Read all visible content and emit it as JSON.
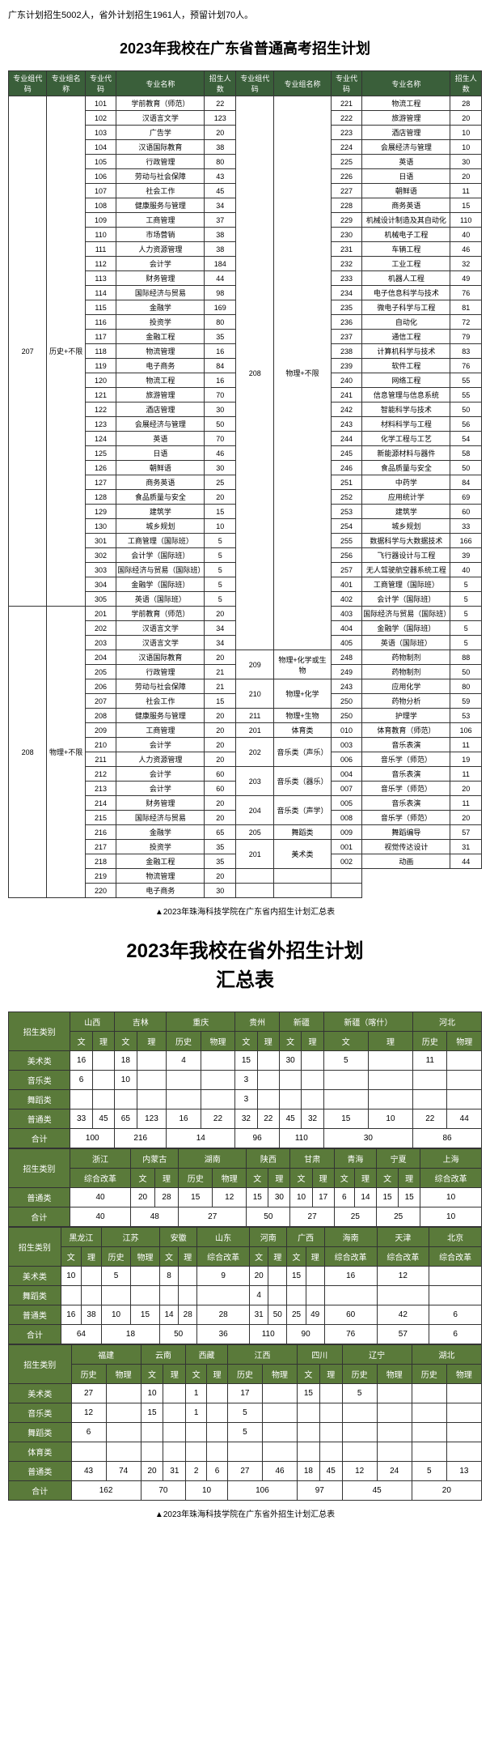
{
  "intro": "广东计划招生5002人，省外计划招生1961人，预留计划70人。",
  "title1": "2023年我校在广东省普通高考招生计划",
  "caption1": "▲2023年珠海科技学院在广东省内招生计划汇总表",
  "title2a": "2023年我校在省外招生计划",
  "title2b": "汇总表",
  "caption2": "▲2023年珠海科技学院在广东省外招生计划汇总表",
  "h1": [
    "专业组代码",
    "专业组名称",
    "专业代码",
    "专业名称",
    "招生人数",
    "专业组代码",
    "专业组名称",
    "专业代码",
    "专业名称",
    "招生人数"
  ],
  "g1": {
    "code": "207",
    "name": "历史+不限"
  },
  "g2": {
    "code": "208",
    "name": "物理+不限"
  },
  "g3": {
    "code": "208",
    "name": "物理+不限"
  },
  "g4": {
    "code": "209",
    "name": "物理+化学或生物"
  },
  "g5": {
    "code": "210",
    "name": "物理+化学"
  },
  "g6": {
    "code": "211",
    "name": "物理+生物"
  },
  "g7": {
    "code": "201",
    "name": "体育类"
  },
  "g8": {
    "code": "202",
    "name": "音乐类（声乐）"
  },
  "g9": {
    "code": "203",
    "name": "音乐类（器乐）"
  },
  "g10": {
    "code": "204",
    "name": "音乐类（声学）"
  },
  "g11": {
    "code": "205",
    "name": "舞蹈类"
  },
  "g12": {
    "code": "201",
    "name": "美术类"
  },
  "left": [
    [
      "101",
      "学前教育（师范）",
      "22"
    ],
    [
      "102",
      "汉语言文学",
      "123"
    ],
    [
      "103",
      "广告学",
      "20"
    ],
    [
      "104",
      "汉语国际教育",
      "38"
    ],
    [
      "105",
      "行政管理",
      "80"
    ],
    [
      "106",
      "劳动与社会保障",
      "43"
    ],
    [
      "107",
      "社会工作",
      "45"
    ],
    [
      "108",
      "健康服务与管理",
      "34"
    ],
    [
      "109",
      "工商管理",
      "37"
    ],
    [
      "110",
      "市场营销",
      "38"
    ],
    [
      "111",
      "人力资源管理",
      "38"
    ],
    [
      "112",
      "会计学",
      "184"
    ],
    [
      "113",
      "财务管理",
      "44"
    ],
    [
      "114",
      "国际经济与贸易",
      "98"
    ],
    [
      "115",
      "金融学",
      "169"
    ],
    [
      "116",
      "投资学",
      "80"
    ],
    [
      "117",
      "金融工程",
      "35"
    ],
    [
      "118",
      "物流管理",
      "16"
    ],
    [
      "119",
      "电子商务",
      "84"
    ],
    [
      "120",
      "物流工程",
      "16"
    ],
    [
      "121",
      "旅游管理",
      "70"
    ],
    [
      "122",
      "酒店管理",
      "30"
    ],
    [
      "123",
      "会展经济与管理",
      "50"
    ],
    [
      "124",
      "英语",
      "70"
    ],
    [
      "125",
      "日语",
      "46"
    ],
    [
      "126",
      "朝鲜语",
      "30"
    ],
    [
      "127",
      "商务英语",
      "25"
    ],
    [
      "128",
      "食品质量与安全",
      "20"
    ],
    [
      "129",
      "建筑学",
      "15"
    ],
    [
      "130",
      "城乡规划",
      "10"
    ],
    [
      "301",
      "工商管理（国际班）",
      "5"
    ],
    [
      "302",
      "会计学（国际班）",
      "5"
    ],
    [
      "303",
      "国际经济与贸易（国际班）",
      "5"
    ],
    [
      "304",
      "金融学（国际班）",
      "5"
    ],
    [
      "305",
      "英语（国际班）",
      "5"
    ],
    [
      "201",
      "学前教育（师范）",
      "20"
    ],
    [
      "202",
      "汉语言文学",
      "34"
    ],
    [
      "203",
      "汉语言文学",
      "34"
    ],
    [
      "204",
      "汉语国际教育",
      "20"
    ],
    [
      "205",
      "行政管理",
      "21"
    ],
    [
      "206",
      "劳动与社会保障",
      "21"
    ],
    [
      "207",
      "社会工作",
      "15"
    ],
    [
      "208",
      "健康服务与管理",
      "20"
    ],
    [
      "209",
      "工商管理",
      "20"
    ],
    [
      "210",
      "会计学",
      "20"
    ],
    [
      "211",
      "人力资源管理",
      "20"
    ],
    [
      "212",
      "会计学",
      "60"
    ],
    [
      "213",
      "会计学",
      "60"
    ],
    [
      "214",
      "财务管理",
      "20"
    ],
    [
      "215",
      "国际经济与贸易",
      "20"
    ],
    [
      "216",
      "金融学",
      "65"
    ],
    [
      "217",
      "投资学",
      "35"
    ],
    [
      "218",
      "金融工程",
      "35"
    ],
    [
      "219",
      "物流管理",
      "20"
    ],
    [
      "220",
      "电子商务",
      "30"
    ]
  ],
  "right": [
    [
      "221",
      "物流工程",
      "28"
    ],
    [
      "222",
      "旅游管理",
      "20"
    ],
    [
      "223",
      "酒店管理",
      "10"
    ],
    [
      "224",
      "会展经济与管理",
      "10"
    ],
    [
      "225",
      "英语",
      "30"
    ],
    [
      "226",
      "日语",
      "20"
    ],
    [
      "227",
      "朝鲜语",
      "11"
    ],
    [
      "228",
      "商务英语",
      "15"
    ],
    [
      "229",
      "机械设计制造及其自动化",
      "110"
    ],
    [
      "230",
      "机械电子工程",
      "40"
    ],
    [
      "231",
      "车辆工程",
      "46"
    ],
    [
      "232",
      "工业工程",
      "32"
    ],
    [
      "233",
      "机器人工程",
      "49"
    ],
    [
      "234",
      "电子信息科学与技术",
      "76"
    ],
    [
      "235",
      "微电子科学与工程",
      "81"
    ],
    [
      "236",
      "自动化",
      "72"
    ],
    [
      "237",
      "通信工程",
      "79"
    ],
    [
      "238",
      "计算机科学与技术",
      "83"
    ],
    [
      "239",
      "软件工程",
      "76"
    ],
    [
      "240",
      "网络工程",
      "55"
    ],
    [
      "241",
      "信息管理与信息系统",
      "55"
    ],
    [
      "242",
      "智能科学与技术",
      "50"
    ],
    [
      "243",
      "材料科学与工程",
      "56"
    ],
    [
      "244",
      "化学工程与工艺",
      "54"
    ],
    [
      "245",
      "新能源材料与器件",
      "58"
    ],
    [
      "246",
      "食品质量与安全",
      "50"
    ],
    [
      "251",
      "中药学",
      "84"
    ],
    [
      "252",
      "应用统计学",
      "69"
    ],
    [
      "253",
      "建筑学",
      "60"
    ],
    [
      "254",
      "城乡规划",
      "33"
    ],
    [
      "255",
      "数据科学与大数据技术",
      "166"
    ],
    [
      "256",
      "飞行器设计与工程",
      "39"
    ],
    [
      "257",
      "无人驾驶航空器系统工程",
      "40"
    ],
    [
      "401",
      "工商管理（国际班）",
      "5"
    ],
    [
      "402",
      "会计学（国际班）",
      "5"
    ],
    [
      "403",
      "国际经济与贸易（国际班）",
      "5"
    ],
    [
      "404",
      "金融学（国际班）",
      "5"
    ],
    [
      "405",
      "英语（国际班）",
      "5"
    ],
    [
      "248",
      "药物制剂",
      "88"
    ],
    [
      "249",
      "药物制剂",
      "50"
    ],
    [
      "243",
      "应用化学",
      "80"
    ],
    [
      "250",
      "药物分析",
      "59"
    ],
    [
      "250",
      "护理学",
      "53"
    ],
    [
      "010",
      "体育教育（师范）",
      "106"
    ],
    [
      "003",
      "音乐表演",
      "11"
    ],
    [
      "006",
      "音乐学（师范）",
      "19"
    ],
    [
      "004",
      "音乐表演",
      "11"
    ],
    [
      "007",
      "音乐学（师范）",
      "20"
    ],
    [
      "005",
      "音乐表演",
      "11"
    ],
    [
      "008",
      "音乐学（师范）",
      "20"
    ],
    [
      "009",
      "舞蹈编导",
      "57"
    ],
    [
      "001",
      "视觉传达设计",
      "31"
    ],
    [
      "002",
      "动画",
      "44"
    ]
  ],
  "t2": {
    "cats": [
      "美术类",
      "音乐类",
      "舞蹈类",
      "普通类",
      "合计"
    ],
    "cats2": [
      "普通类",
      "合计"
    ],
    "cats3": [
      "美术类",
      "舞蹈类",
      "普通类",
      "合计"
    ],
    "cats4": [
      "美术类",
      "音乐类",
      "舞蹈类",
      "体育类",
      "普通类",
      "合计"
    ],
    "b1": {
      "prov": [
        "山西",
        "吉林",
        "重庆",
        "贵州",
        "新疆",
        "新疆（喀什）",
        "河北"
      ],
      "sub": [
        "文",
        "理",
        "文",
        "理",
        "历史",
        "物理",
        "文",
        "理",
        "文",
        "理",
        "文",
        "理",
        "历史",
        "物理"
      ],
      "r": [
        [
          "16",
          "",
          "18",
          "",
          "4",
          "",
          "15",
          "",
          "30",
          "",
          "5",
          "",
          "11",
          ""
        ],
        [
          "6",
          "",
          "10",
          "",
          "",
          "",
          "3",
          "",
          "",
          "",
          "",
          "",
          "",
          ""
        ],
        [
          "",
          "",
          "",
          "",
          "",
          "",
          "3",
          "",
          "",
          "",
          "",
          "",
          "",
          ""
        ],
        [
          "33",
          "45",
          "65",
          "123",
          "16",
          "22",
          "32",
          "22",
          "45",
          "32",
          "15",
          "10",
          "22",
          "44"
        ],
        [
          "100",
          "",
          "216",
          "",
          "14",
          "",
          "96",
          "",
          "110",
          "",
          "30",
          "",
          "86",
          ""
        ]
      ]
    },
    "b2": {
      "prov": [
        "浙江",
        "内蒙古",
        "湖南",
        "陕西",
        "甘肃",
        "青海",
        "宁夏",
        "上海"
      ],
      "sub": [
        "综合改革",
        "文",
        "理",
        "历史",
        "物理",
        "文",
        "理",
        "文",
        "理",
        "文",
        "理",
        "文",
        "理",
        "综合改革"
      ],
      "r": [
        [
          "40",
          "20",
          "28",
          "15",
          "12",
          "15",
          "30",
          "10",
          "17",
          "6",
          "14",
          "15",
          "15",
          "10"
        ],
        [
          "40",
          "48",
          "",
          "27",
          "",
          "50",
          "",
          "27",
          "",
          "25",
          "",
          "25",
          "",
          "10"
        ]
      ]
    },
    "b3": {
      "prov": [
        "黑龙江",
        "江苏",
        "安徽",
        "山东",
        "河南",
        "广西",
        "海南",
        "天津",
        "北京"
      ],
      "sub": [
        "文",
        "理",
        "历史",
        "物理",
        "文",
        "理",
        "综合改革",
        "文",
        "理",
        "文",
        "理",
        "综合改革",
        "综合改革",
        "综合改革"
      ],
      "r": [
        [
          "10",
          "",
          "5",
          "",
          "8",
          "",
          "9",
          "20",
          "",
          "15",
          "",
          "16",
          "12",
          ""
        ],
        [
          "",
          "",
          "",
          "",
          "",
          "",
          "",
          "4",
          "",
          "",
          "",
          "",
          "",
          ""
        ],
        [
          "16",
          "38",
          "10",
          "15",
          "14",
          "28",
          "28",
          "31",
          "50",
          "25",
          "49",
          "60",
          "42",
          "6"
        ],
        [
          "64",
          "",
          "18",
          "",
          "50",
          "",
          "36",
          "110",
          "",
          "90",
          "",
          "76",
          "57",
          "6"
        ]
      ]
    },
    "b4": {
      "prov": [
        "福建",
        "云南",
        "西藏",
        "江西",
        "四川",
        "辽宁",
        "湖北"
      ],
      "sub": [
        "历史",
        "物理",
        "文",
        "理",
        "文",
        "理",
        "历史",
        "物理",
        "文",
        "理",
        "历史",
        "物理",
        "历史",
        "物理"
      ],
      "r": [
        [
          "27",
          "",
          "10",
          "",
          "1",
          "",
          "17",
          "",
          "15",
          "",
          "5",
          "",
          "",
          ""
        ],
        [
          "12",
          "",
          "15",
          "",
          "1",
          "",
          "5",
          "",
          "",
          "",
          "",
          "",
          "",
          ""
        ],
        [
          "6",
          "",
          "",
          "",
          "",
          "",
          "5",
          "",
          "",
          "",
          "",
          "",
          "",
          ""
        ],
        [
          "",
          "",
          "",
          "",
          "",
          "",
          "",
          "",
          "",
          "",
          "",
          "",
          "",
          ""
        ],
        [
          "43",
          "74",
          "20",
          "31",
          "2",
          "6",
          "27",
          "46",
          "18",
          "45",
          "12",
          "24",
          "5",
          "13"
        ],
        [
          "162",
          "",
          "70",
          "",
          "10",
          "",
          "106",
          "",
          "97",
          "",
          "45",
          "",
          "20",
          ""
        ]
      ]
    }
  }
}
